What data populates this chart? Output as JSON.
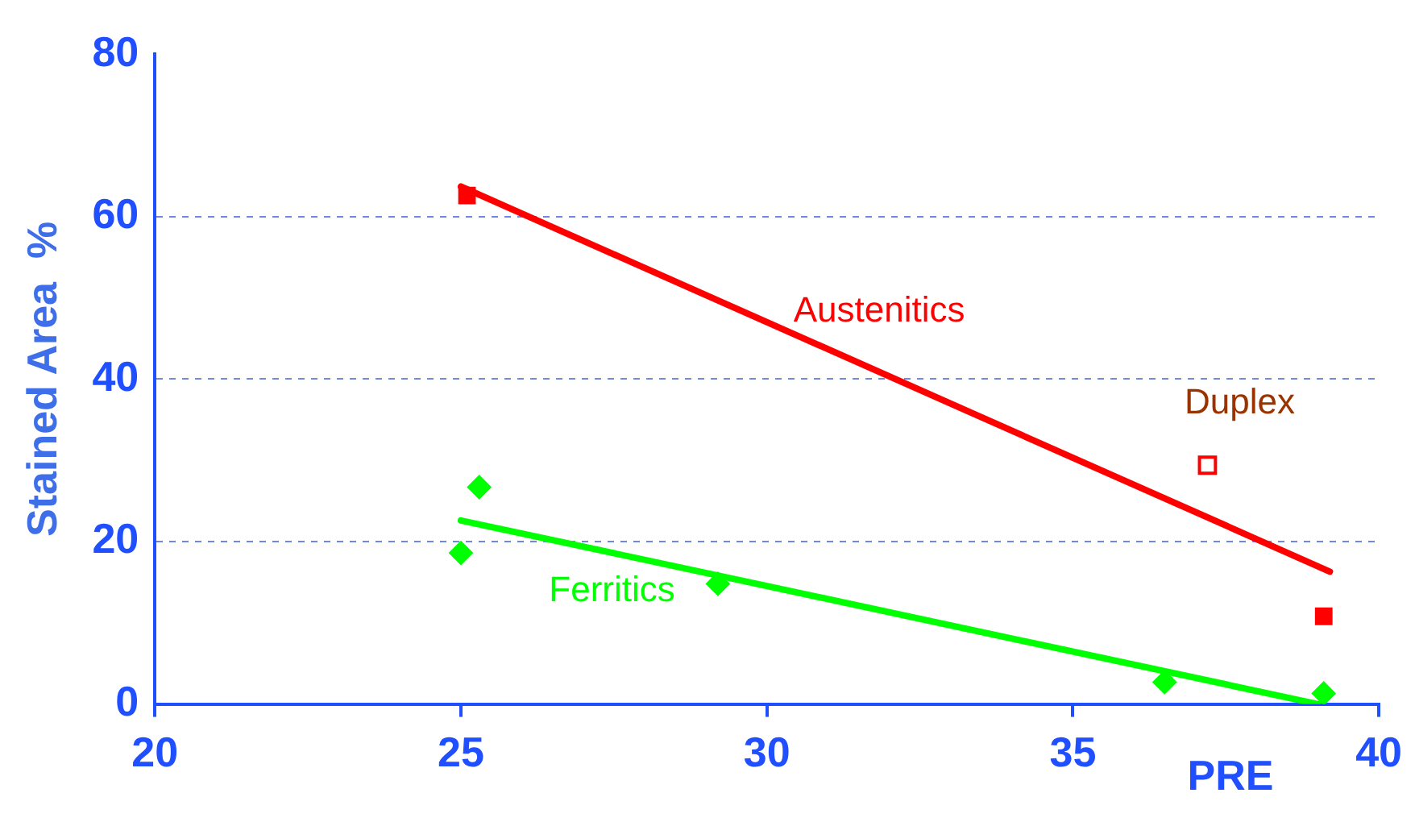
{
  "chart_data": {
    "type": "scatter",
    "xlabel": "PRE",
    "ylabel": "Stained Area  %",
    "xlim": [
      20,
      40
    ],
    "xticks": [
      20,
      25,
      30,
      35,
      40
    ],
    "ylim": [
      0,
      80
    ],
    "yticks": [
      0,
      20,
      40,
      60,
      80
    ],
    "grid": "y",
    "legend": false,
    "series": [
      {
        "name": "Austenitics",
        "type": "line",
        "color": "#ff0000",
        "x": [
          25.0,
          39.2
        ],
        "values": [
          63.7,
          16.3
        ],
        "marker": "none"
      },
      {
        "name": "Ferritics",
        "type": "line",
        "color": "#00ff00",
        "x": [
          25.0,
          39.0
        ],
        "values": [
          22.6,
          0
        ],
        "marker": "none"
      },
      {
        "color": "#ff0000",
        "marker": "square",
        "x": [
          25.1,
          39.1
        ],
        "values": [
          62.6,
          10.8
        ]
      },
      {
        "name": "Duplex",
        "color": "#ff0000",
        "marker": "square",
        "x": [
          37.2
        ],
        "values": [
          29.4
        ]
      },
      {
        "color": "#00ff00",
        "marker": "diamond",
        "x": [
          25.0,
          25.3,
          29.2,
          36.5,
          39.1
        ],
        "values": [
          18.6,
          26.7,
          14.8,
          2.7,
          1.3
        ]
      }
    ]
  }
}
